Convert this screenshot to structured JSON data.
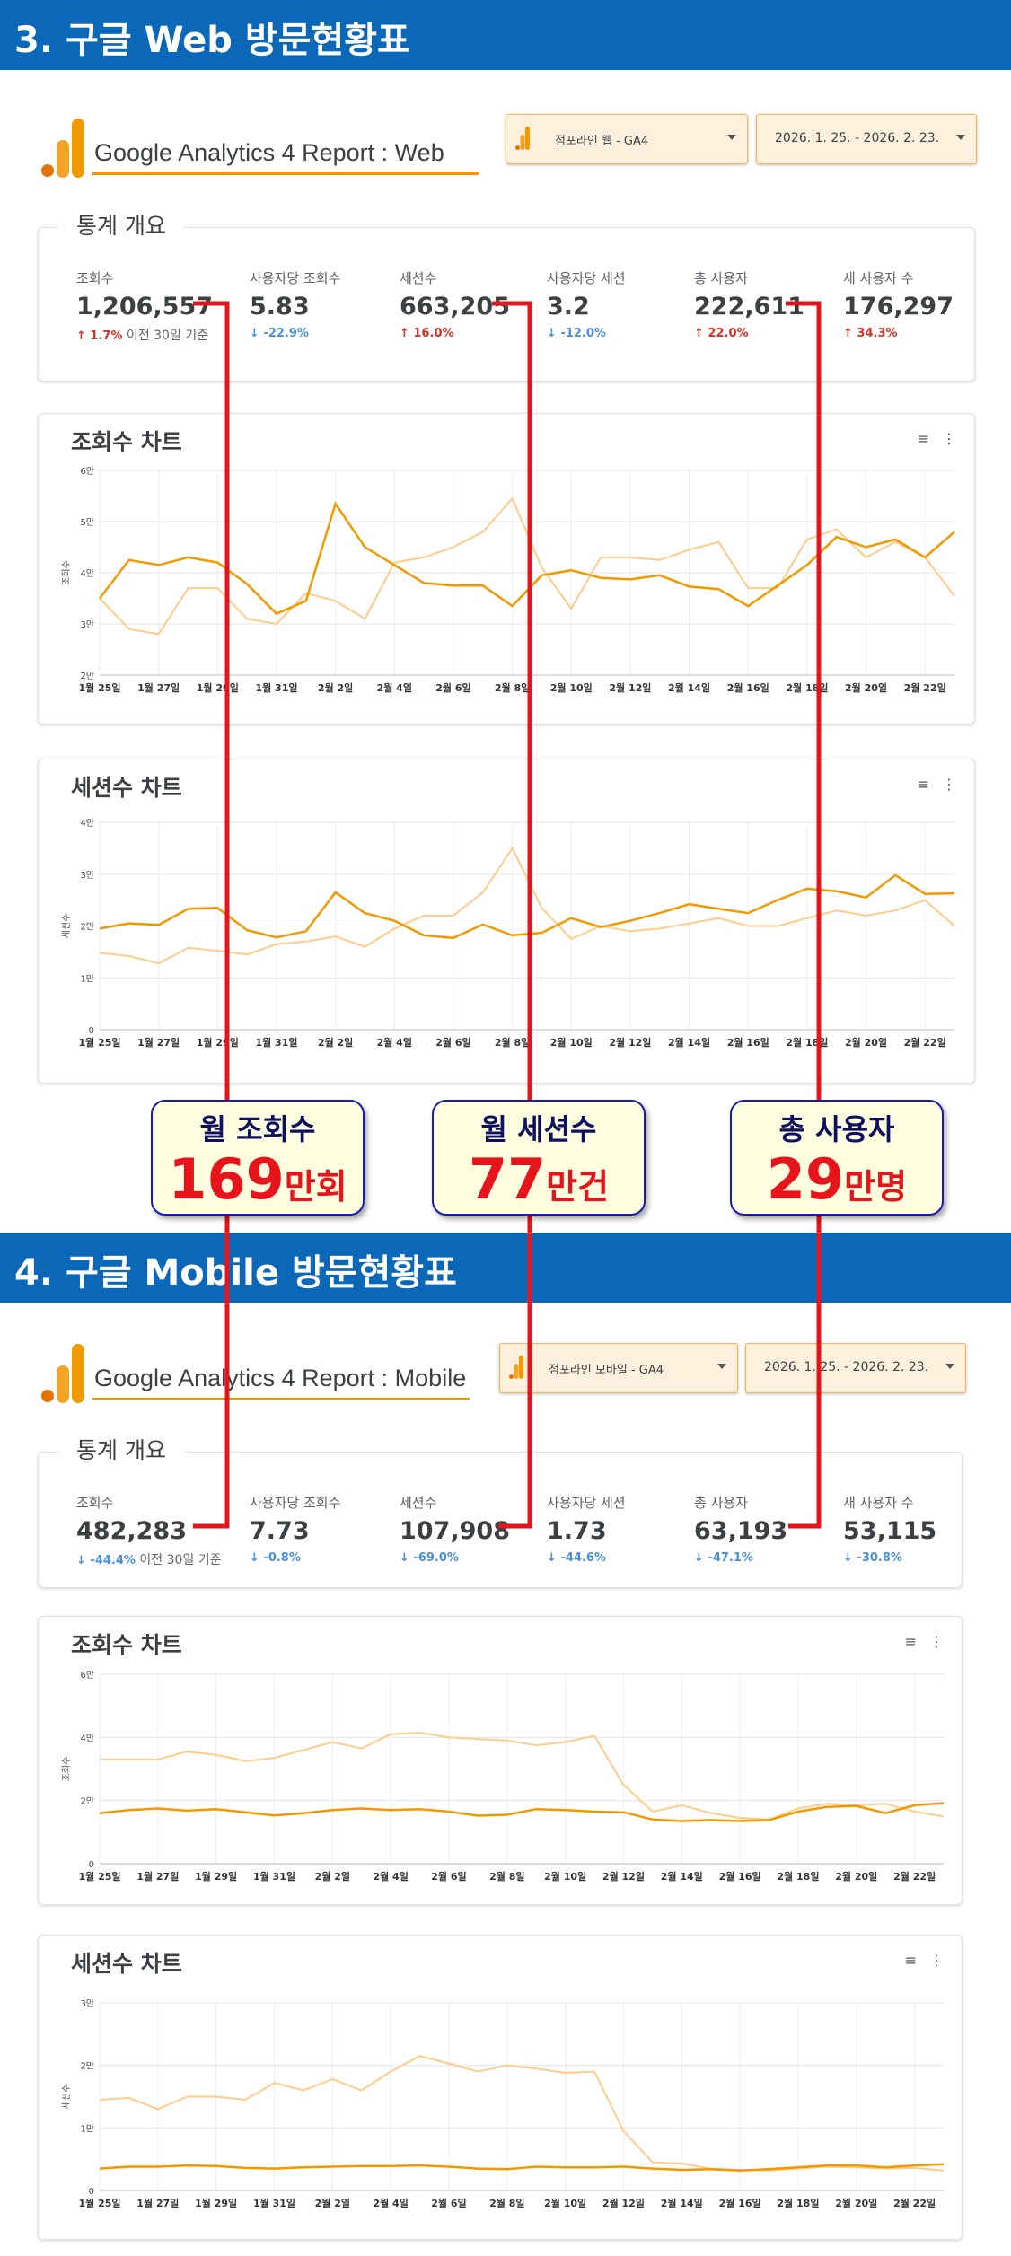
{
  "colors": {
    "banner": "#0b67b8",
    "accent": "#f29900",
    "lineDark": "#f29900",
    "lineLight": "#ffcc8a",
    "connector": "#e8141b",
    "up": "#d93025",
    "down": "#4a90d9"
  },
  "web": {
    "banner": "3. 구글 Web 방문현황표",
    "report_title": "Google Analytics 4 Report : Web",
    "property": "점포라인 웹 - GA4",
    "date_range": "2026. 1. 25. - 2026. 2. 23.",
    "overview_title": "통계 개요",
    "stats": [
      {
        "label": "조회수",
        "value": "1,206,557",
        "change": "↑ 1.7%",
        "dir": "up",
        "note": " 이전 30일 기준"
      },
      {
        "label": "사용자당 조회수",
        "value": "5.83",
        "change": "↓ -22.9%",
        "dir": "down",
        "note": ""
      },
      {
        "label": "세션수",
        "value": "663,205",
        "change": "↑ 16.0%",
        "dir": "up",
        "note": ""
      },
      {
        "label": "사용자당 세션",
        "value": "3.2",
        "change": "↓ -12.0%",
        "dir": "down",
        "note": ""
      },
      {
        "label": "총 사용자",
        "value": "222,611",
        "change": "↑ 22.0%",
        "dir": "up",
        "note": ""
      },
      {
        "label": "새 사용자 수",
        "value": "176,297",
        "change": "↑ 34.3%",
        "dir": "up",
        "note": ""
      }
    ],
    "views_chart_title": "조회수 차트",
    "sessions_chart_title": "세션수 차트"
  },
  "mobile": {
    "banner": "4. 구글 Mobile 방문현황표",
    "report_title": "Google Analytics 4 Report : Mobile",
    "property": "점포라인 모바일 - GA4",
    "date_range": "2026. 1. 25. - 2026. 2. 23.",
    "overview_title": "통계 개요",
    "stats": [
      {
        "label": "조회수",
        "value": "482,283",
        "change": "↓ -44.4%",
        "dir": "down",
        "note": " 이전 30일 기준"
      },
      {
        "label": "사용자당 조회수",
        "value": "7.73",
        "change": "↓ -0.8%",
        "dir": "down",
        "note": ""
      },
      {
        "label": "세션수",
        "value": "107,908",
        "change": "↓ -69.0%",
        "dir": "down",
        "note": ""
      },
      {
        "label": "사용자당 세션",
        "value": "1.73",
        "change": "↓ -44.6%",
        "dir": "down",
        "note": ""
      },
      {
        "label": "총 사용자",
        "value": "63,193",
        "change": "↓ -47.1%",
        "dir": "down",
        "note": ""
      },
      {
        "label": "새 사용자 수",
        "value": "53,115",
        "change": "↓ -30.8%",
        "dir": "down",
        "note": ""
      }
    ],
    "views_chart_title": "조회수 차트",
    "sessions_chart_title": "세션수 차트"
  },
  "callouts": [
    {
      "title": "월 조회수",
      "number": "169",
      "unit": "만회"
    },
    {
      "title": "월 세션수",
      "number": "77",
      "unit": "만건"
    },
    {
      "title": "총 사용자",
      "number": "29",
      "unit": "만명"
    }
  ],
  "chart_data": [
    {
      "type": "line",
      "section": "web",
      "title": "조회수 차트",
      "ylabel": "조회수",
      "x": [
        "1월 25일",
        "1월 26일",
        "1월 27일",
        "1월 28일",
        "1월 29일",
        "1월 30일",
        "1월 31일",
        "2월 1일",
        "2월 2일",
        "2월 3일",
        "2월 4일",
        "2월 5일",
        "2월 6일",
        "2월 7일",
        "2월 8일",
        "2월 9일",
        "2월 10일",
        "2월 11일",
        "2월 12일",
        "2월 13일",
        "2월 14일",
        "2월 15일",
        "2월 16일",
        "2월 17일",
        "2월 18일",
        "2월 19일",
        "2월 20일",
        "2월 21일",
        "2월 22일",
        "2월 23일"
      ],
      "xtick_labels": [
        "1월 25일",
        "1월 27일",
        "1월 29일",
        "1월 31일",
        "2월 2일",
        "2월 4일",
        "2월 6일",
        "2월 8일",
        "2월 10일",
        "2월 12일",
        "2월 14일",
        "2월 16일",
        "2월 18일",
        "2월 20일",
        "2월 22일"
      ],
      "ylim": [
        20000,
        60000
      ],
      "yticks": [
        20000,
        30000,
        40000,
        50000,
        60000
      ],
      "ytick_labels": [
        "2만",
        "3만",
        "4만",
        "5만",
        "6만"
      ],
      "series": [
        {
          "style": "dark",
          "values": [
            35000,
            42500,
            41500,
            43000,
            42000,
            37800,
            32000,
            34500,
            53500,
            45000,
            41500,
            38000,
            37500,
            37500,
            33500,
            39500,
            40500,
            39000,
            38700,
            39500,
            37300,
            36800,
            33500,
            37500,
            41500,
            47000,
            45000,
            46500,
            43000,
            48000
          ]
        },
        {
          "style": "light",
          "values": [
            35000,
            29000,
            28000,
            37000,
            37000,
            31000,
            30000,
            36000,
            34500,
            31000,
            42000,
            43000,
            45000,
            48000,
            54500,
            41000,
            33000,
            43000,
            43000,
            42500,
            44500,
            46000,
            37000,
            37000,
            46500,
            48500,
            43000,
            46000,
            43000,
            35500
          ]
        }
      ]
    },
    {
      "type": "line",
      "section": "web",
      "title": "세션수 차트",
      "ylabel": "세션수",
      "x": [
        "1월 25일",
        "1월 26일",
        "1월 27일",
        "1월 28일",
        "1월 29일",
        "1월 30일",
        "1월 31일",
        "2월 1일",
        "2월 2일",
        "2월 3일",
        "2월 4일",
        "2월 5일",
        "2월 6일",
        "2월 7일",
        "2월 8일",
        "2월 9일",
        "2월 10일",
        "2월 11일",
        "2월 12일",
        "2월 13일",
        "2월 14일",
        "2월 15일",
        "2월 16일",
        "2월 17일",
        "2월 18일",
        "2월 19일",
        "2월 20일",
        "2월 21일",
        "2월 22일",
        "2월 23일"
      ],
      "xtick_labels": [
        "1월 25일",
        "1월 27일",
        "1월 29일",
        "1월 31일",
        "2월 2일",
        "2월 4일",
        "2월 6일",
        "2월 8일",
        "2월 10일",
        "2월 12일",
        "2월 14일",
        "2월 16일",
        "2월 18일",
        "2월 20일",
        "2월 22일"
      ],
      "ylim": [
        0,
        40000
      ],
      "yticks": [
        0,
        10000,
        20000,
        30000,
        40000
      ],
      "ytick_labels": [
        "0",
        "1만",
        "2만",
        "3만",
        "4만"
      ],
      "series": [
        {
          "style": "dark",
          "values": [
            19500,
            20500,
            20200,
            23300,
            23500,
            19200,
            17800,
            19000,
            26500,
            22500,
            21000,
            18200,
            17700,
            20300,
            18200,
            18700,
            21500,
            19800,
            21000,
            22500,
            24200,
            23300,
            22500,
            25000,
            27200,
            26700,
            25500,
            29800,
            26200,
            26300
          ]
        },
        {
          "style": "light",
          "values": [
            14800,
            14200,
            12800,
            15800,
            15200,
            14500,
            16500,
            17000,
            18000,
            16000,
            19500,
            22000,
            22000,
            26500,
            35000,
            23500,
            17500,
            20000,
            19000,
            19500,
            20500,
            21500,
            20000,
            20000,
            21500,
            23000,
            22000,
            23000,
            25000,
            20000
          ]
        }
      ]
    },
    {
      "type": "line",
      "section": "mobile",
      "title": "조회수 차트",
      "ylabel": "조회수",
      "x": [
        "1월 25일",
        "1월 26일",
        "1월 27일",
        "1월 28일",
        "1월 29일",
        "1월 30일",
        "1월 31일",
        "2월 1일",
        "2월 2일",
        "2월 3일",
        "2월 4일",
        "2월 5일",
        "2월 6일",
        "2월 7일",
        "2월 8일",
        "2월 9일",
        "2월 10일",
        "2월 11일",
        "2월 12일",
        "2월 13일",
        "2월 14일",
        "2월 15일",
        "2월 16일",
        "2월 17일",
        "2월 18일",
        "2월 19일",
        "2월 20일",
        "2월 21일",
        "2월 22일",
        "2월 23일"
      ],
      "xtick_labels": [
        "1월 25일",
        "1월 27일",
        "1월 29일",
        "1월 31일",
        "2월 2일",
        "2월 4일",
        "2월 6일",
        "2월 8일",
        "2월 10일",
        "2월 12일",
        "2월 14일",
        "2월 16일",
        "2월 18일",
        "2월 20일",
        "2월 22일"
      ],
      "ylim": [
        0,
        60000
      ],
      "yticks": [
        0,
        20000,
        40000,
        60000
      ],
      "ytick_labels": [
        "0",
        "2만",
        "4만",
        "6만"
      ],
      "series": [
        {
          "style": "dark",
          "values": [
            16000,
            17000,
            17500,
            16800,
            17300,
            16300,
            15300,
            16000,
            17000,
            17500,
            17000,
            17300,
            16500,
            15200,
            15500,
            17300,
            17000,
            16500,
            16300,
            14000,
            13500,
            13800,
            13500,
            13800,
            16500,
            18000,
            18300,
            16000,
            18500,
            19200
          ]
        },
        {
          "style": "light",
          "values": [
            33000,
            33000,
            33000,
            35500,
            34500,
            32500,
            33500,
            36000,
            38500,
            36500,
            41000,
            41500,
            40000,
            39500,
            39000,
            37500,
            38500,
            40500,
            25000,
            16500,
            18500,
            16000,
            14500,
            14000,
            17500,
            19000,
            18500,
            19000,
            16500,
            15000
          ]
        }
      ]
    },
    {
      "type": "line",
      "section": "mobile",
      "title": "세션수 차트",
      "ylabel": "세션수",
      "x": [
        "1월 25일",
        "1월 26일",
        "1월 27일",
        "1월 28일",
        "1월 29일",
        "1월 30일",
        "1월 31일",
        "2월 1일",
        "2월 2일",
        "2월 3일",
        "2월 4일",
        "2월 5일",
        "2월 6일",
        "2월 7일",
        "2월 8일",
        "2월 9일",
        "2월 10일",
        "2월 11일",
        "2월 12일",
        "2월 13일",
        "2월 14일",
        "2월 15일",
        "2월 16일",
        "2월 17일",
        "2월 18일",
        "2월 19일",
        "2월 20일",
        "2월 21일",
        "2월 22일",
        "2월 23일"
      ],
      "xtick_labels": [
        "1월 25일",
        "1월 27일",
        "1월 29일",
        "1월 31일",
        "2월 2일",
        "2월 4일",
        "2월 6일",
        "2월 8일",
        "2월 10일",
        "2월 12일",
        "2월 14일",
        "2월 16일",
        "2월 18일",
        "2월 20일",
        "2월 22일"
      ],
      "ylim": [
        0,
        30000
      ],
      "yticks": [
        0,
        10000,
        20000,
        30000
      ],
      "ytick_labels": [
        "0",
        "1만",
        "2만",
        "3만"
      ],
      "series": [
        {
          "style": "dark",
          "values": [
            3500,
            3800,
            3800,
            4000,
            3900,
            3600,
            3500,
            3700,
            3800,
            3900,
            3900,
            4000,
            3800,
            3500,
            3400,
            3800,
            3700,
            3700,
            3800,
            3500,
            3300,
            3400,
            3200,
            3400,
            3700,
            4000,
            4000,
            3700,
            4000,
            4200
          ]
        },
        {
          "style": "light",
          "values": [
            14500,
            14800,
            13000,
            15000,
            15000,
            14500,
            17200,
            16000,
            17800,
            16000,
            19000,
            21500,
            20300,
            19000,
            20000,
            19500,
            18800,
            19000,
            9500,
            4500,
            4300,
            3500,
            3300,
            3200,
            3500,
            3800,
            3700,
            3500,
            3600,
            3200
          ]
        }
      ]
    }
  ]
}
